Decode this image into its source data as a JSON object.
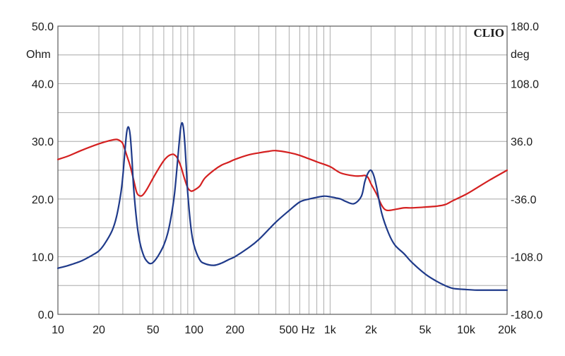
{
  "chart_data": {
    "type": "line",
    "brand": "CLIO",
    "x_scale": "log",
    "xlim": [
      10,
      20000
    ],
    "x_ticks": [
      {
        "value": 10,
        "label": "10"
      },
      {
        "value": 20,
        "label": "20"
      },
      {
        "value": 50,
        "label": "50"
      },
      {
        "value": 100,
        "label": "100"
      },
      {
        "value": 200,
        "label": "200"
      },
      {
        "value": 500,
        "label": "500 Hz"
      },
      {
        "value": 1000,
        "label": "1k"
      },
      {
        "value": 2000,
        "label": "2k"
      },
      {
        "value": 5000,
        "label": "5k"
      },
      {
        "value": 10000,
        "label": "10k"
      },
      {
        "value": 20000,
        "label": "20k"
      }
    ],
    "y_left": {
      "unit": "Ohm",
      "lim": [
        0,
        50
      ],
      "ticks": [
        "0.0",
        "10.0",
        "20.0",
        "30.0",
        "40.0",
        "50.0"
      ]
    },
    "y_right": {
      "unit": "deg",
      "lim": [
        -180,
        180
      ],
      "ticks": [
        "-180.0",
        "-108.0",
        "-36.0",
        "36.0",
        "108.0",
        "180.0"
      ]
    },
    "grid": true,
    "colors": {
      "impedance": "#1f3a8a",
      "phase": "#d42020",
      "grid": "#9a9a9a",
      "frame": "#5a5a5a"
    },
    "series": [
      {
        "axis": "left",
        "color": "#1f3a8a",
        "x": [
          10,
          12,
          15,
          18,
          20,
          22,
          25,
          27,
          29,
          30,
          31,
          32,
          33,
          34,
          35,
          36,
          38,
          40,
          43,
          46,
          48,
          50,
          53,
          56,
          60,
          64,
          68,
          72,
          76,
          78,
          80,
          82,
          84,
          86,
          88,
          90,
          95,
          100,
          110,
          120,
          140,
          160,
          180,
          200,
          250,
          300,
          400,
          500,
          600,
          700,
          800,
          900,
          1000,
          1100,
          1200,
          1300,
          1500,
          1700,
          1800,
          1900,
          2000,
          2100,
          2200,
          2400,
          2700,
          3000,
          3500,
          4000,
          5000,
          6000,
          7000,
          8000,
          10000,
          12000,
          15000,
          20000
        ],
        "y": [
          8.0,
          8.5,
          9.3,
          10.3,
          11.0,
          12.2,
          14.5,
          17.0,
          21.0,
          24.0,
          28.0,
          31.5,
          32.5,
          31.0,
          27.0,
          22.0,
          16.0,
          12.5,
          10.0,
          9.0,
          8.8,
          9.0,
          9.7,
          10.6,
          12.0,
          14.0,
          17.0,
          21.0,
          27.0,
          30.0,
          32.5,
          33.2,
          32.0,
          29.0,
          25.0,
          21.0,
          15.0,
          12.0,
          9.5,
          8.8,
          8.5,
          8.9,
          9.5,
          10.0,
          11.5,
          13.0,
          16.0,
          18.0,
          19.5,
          20.0,
          20.3,
          20.5,
          20.4,
          20.2,
          20.0,
          19.6,
          19.2,
          20.5,
          23.0,
          24.5,
          25.0,
          24.0,
          22.0,
          17.5,
          14.0,
          12.0,
          10.5,
          9.0,
          7.0,
          5.8,
          5.0,
          4.5,
          4.3,
          4.2,
          4.2,
          4.2
        ]
      },
      {
        "axis": "right",
        "color": "#d42020",
        "x": [
          10,
          12,
          15,
          20,
          24,
          27,
          29,
          30,
          32,
          34,
          36,
          38,
          40,
          42,
          45,
          50,
          55,
          60,
          65,
          70,
          72,
          75,
          80,
          85,
          90,
          95,
          100,
          110,
          120,
          140,
          160,
          180,
          200,
          250,
          300,
          350,
          400,
          500,
          600,
          800,
          1000,
          1200,
          1500,
          1700,
          1800,
          1900,
          2000,
          2200,
          2400,
          2600,
          3000,
          3500,
          4000,
          5000,
          6000,
          7000,
          8000,
          10000,
          12000,
          15000,
          20000
        ],
        "y": [
          13.5,
          18,
          25,
          33,
          37,
          38.5,
          36,
          33,
          19,
          5,
          -12,
          -28,
          -32,
          -31,
          -24,
          -10,
          2,
          12,
          18,
          20,
          19,
          16,
          5,
          -10,
          -22,
          -26,
          -25,
          -20,
          -10,
          0,
          6.5,
          10,
          13.5,
          19,
          21.7,
          23.5,
          24.5,
          22,
          18.5,
          10.5,
          4.5,
          -3.5,
          -7,
          -7,
          -6.5,
          -9,
          -17,
          -30,
          -44,
          -50,
          -49,
          -47,
          -47,
          -46,
          -45,
          -43,
          -38,
          -30,
          -22,
          -12,
          0
        ]
      }
    ]
  }
}
